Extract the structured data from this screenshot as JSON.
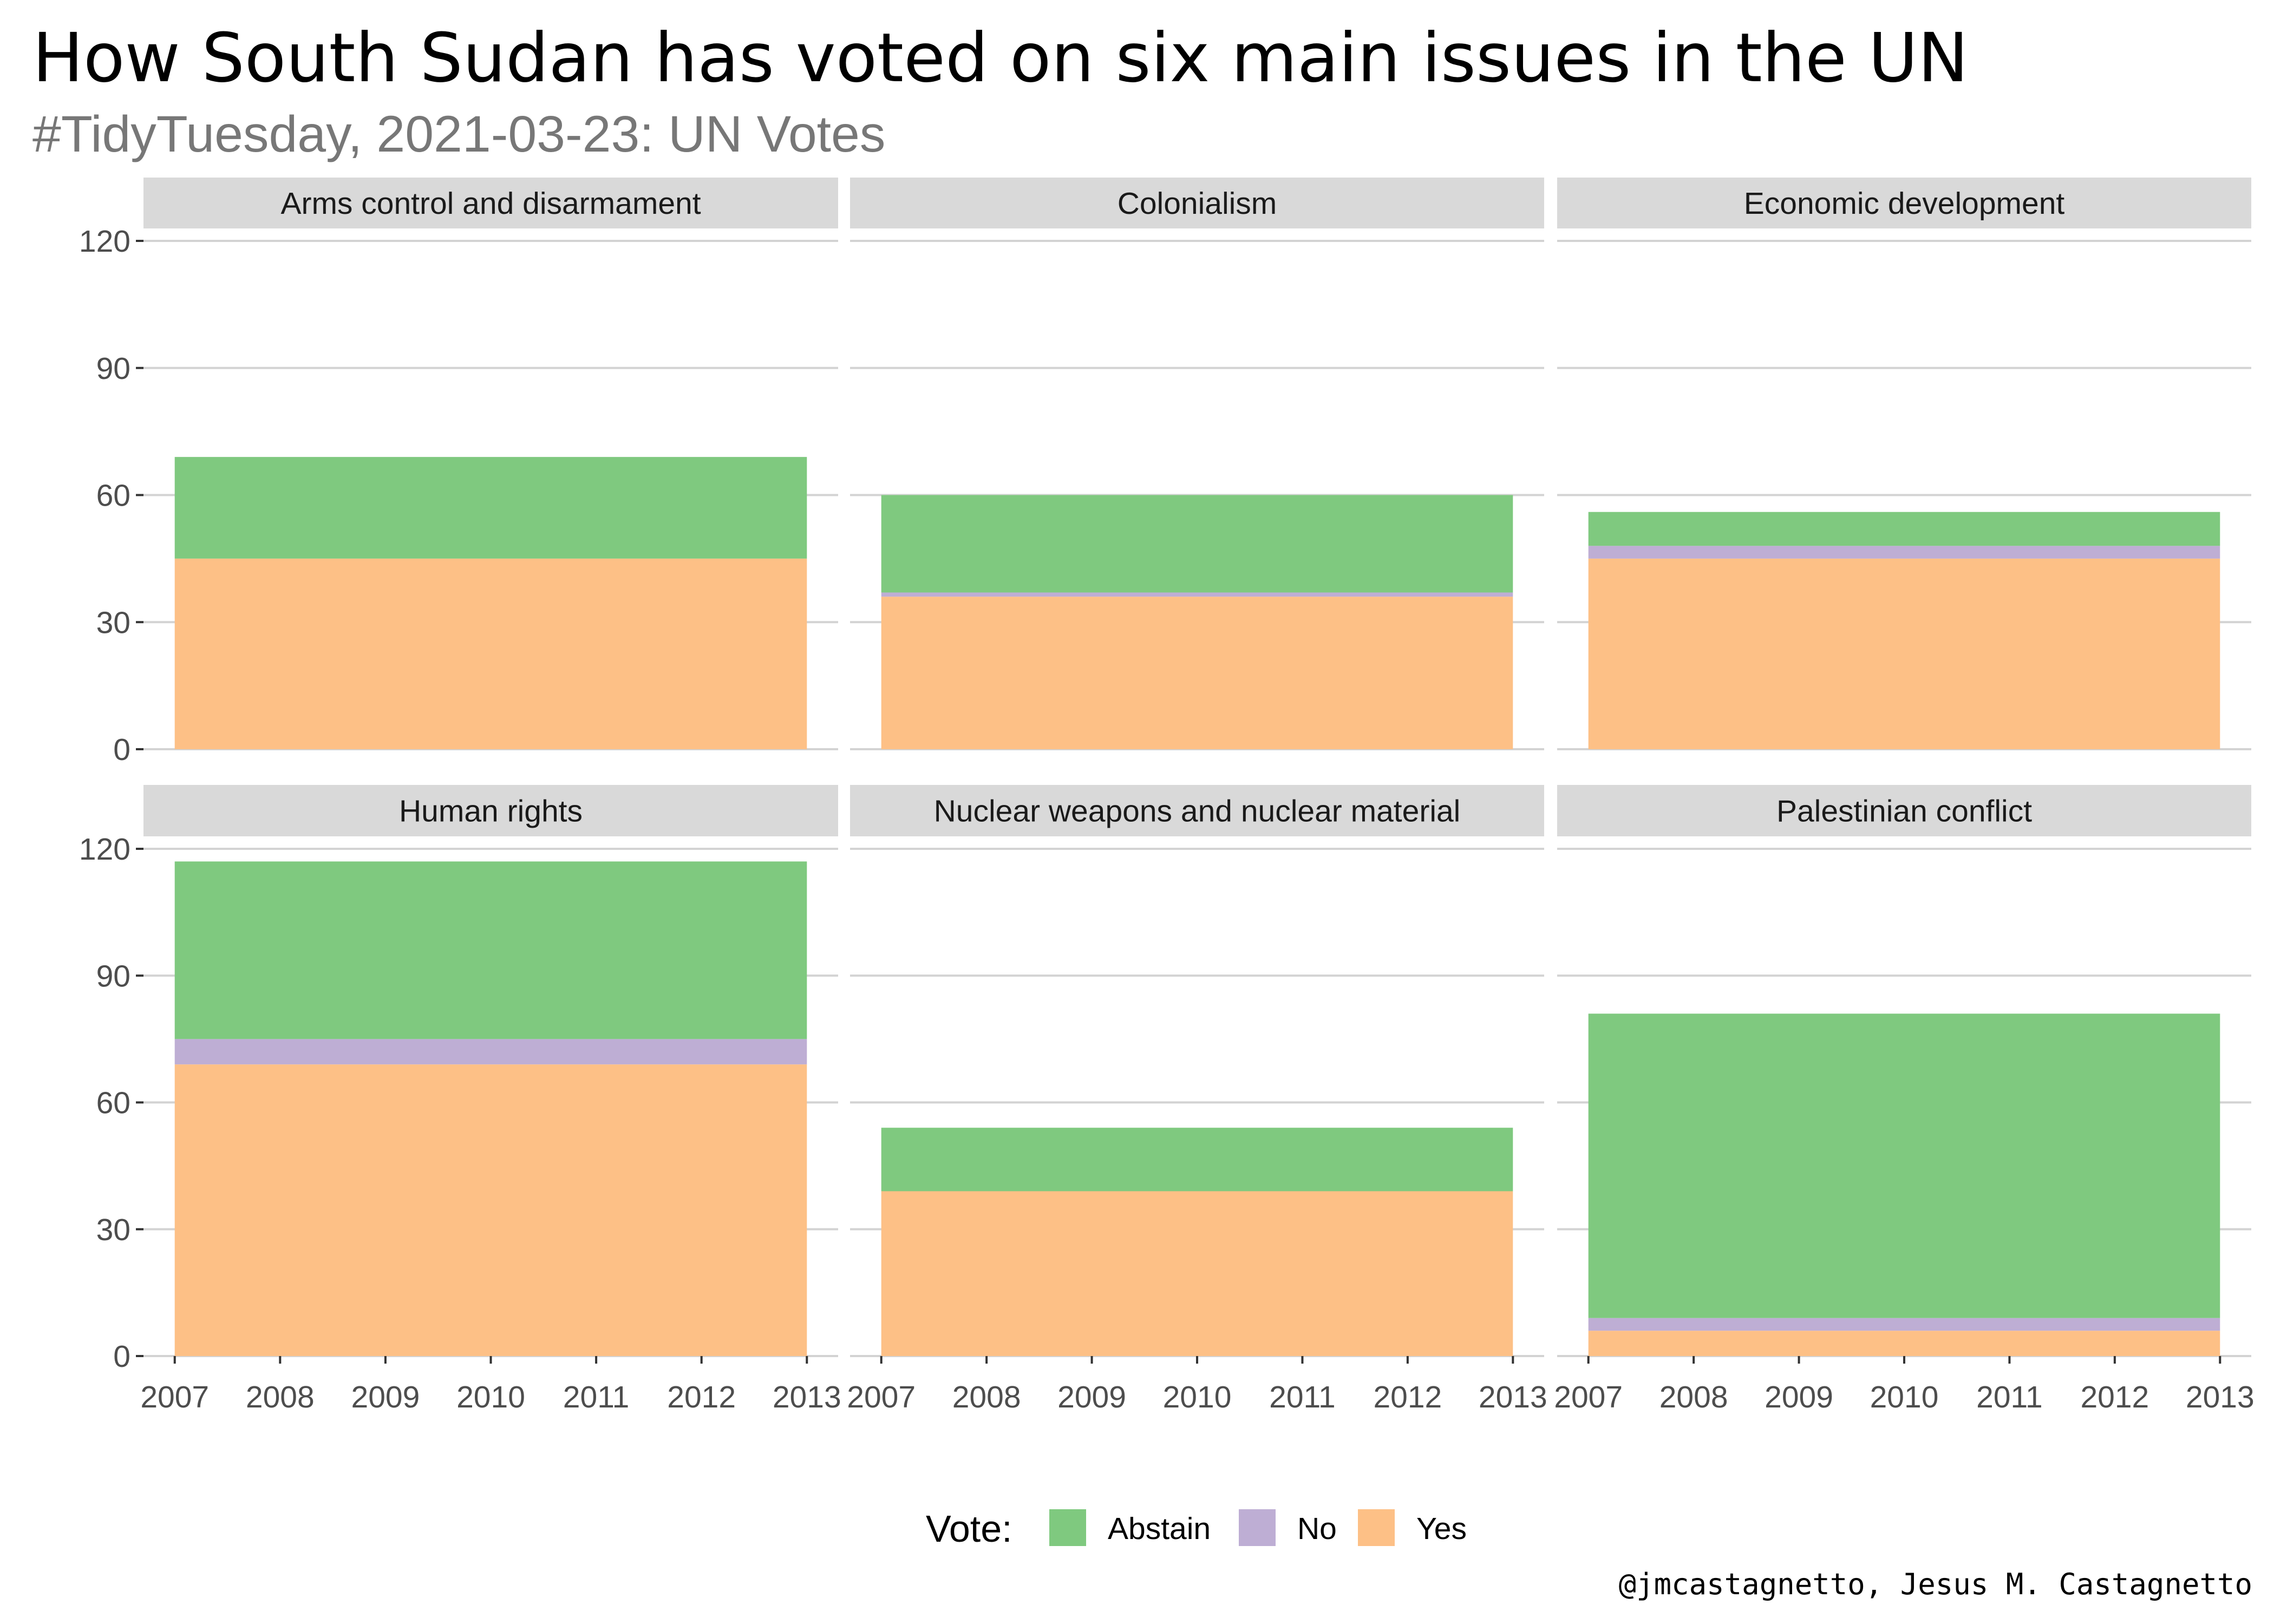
{
  "title": "How South Sudan has voted on six main issues in the UN",
  "subtitle": "#TidyTuesday, 2021-03-23: UN Votes",
  "caption": "@jmcastagnetto, Jesus M. Castagnetto",
  "legend": {
    "title": "Vote:",
    "position": "bottom",
    "items": [
      {
        "label": "Abstain",
        "color": "#7FC97F"
      },
      {
        "label": "No",
        "color": "#BEAED4"
      },
      {
        "label": "Yes",
        "color": "#FDC086"
      }
    ]
  },
  "chart_data": {
    "type": "area",
    "stacked": true,
    "facets": 6,
    "layout": {
      "rows": 2,
      "cols": 3
    },
    "x": [
      2007,
      2008,
      2009,
      2010,
      2011,
      2012,
      2013
    ],
    "xlim": [
      2007,
      2013
    ],
    "ylim": [
      0,
      120
    ],
    "yticks": [
      0,
      30,
      60,
      90,
      120
    ],
    "grid": true,
    "stack_order": [
      "Yes",
      "No",
      "Abstain"
    ],
    "panels": [
      {
        "name": "Arms control and disarmament",
        "series": [
          {
            "name": "Yes",
            "values": [
              45,
              45,
              45,
              45,
              45,
              45,
              45
            ]
          },
          {
            "name": "No",
            "values": [
              0,
              0,
              0,
              0,
              0,
              0,
              0
            ]
          },
          {
            "name": "Abstain",
            "values": [
              24,
              24,
              24,
              24,
              24,
              24,
              24
            ]
          }
        ]
      },
      {
        "name": "Colonialism",
        "series": [
          {
            "name": "Yes",
            "values": [
              36,
              36,
              36,
              36,
              36,
              36,
              36
            ]
          },
          {
            "name": "No",
            "values": [
              1,
              1,
              1,
              1,
              1,
              1,
              1
            ]
          },
          {
            "name": "Abstain",
            "values": [
              23,
              23,
              23,
              23,
              23,
              23,
              23
            ]
          }
        ]
      },
      {
        "name": "Economic development",
        "series": [
          {
            "name": "Yes",
            "values": [
              45,
              45,
              45,
              45,
              45,
              45,
              45
            ]
          },
          {
            "name": "No",
            "values": [
              3,
              3,
              3,
              3,
              3,
              3,
              3
            ]
          },
          {
            "name": "Abstain",
            "values": [
              8,
              8,
              8,
              8,
              8,
              8,
              8
            ]
          }
        ]
      },
      {
        "name": "Human rights",
        "series": [
          {
            "name": "Yes",
            "values": [
              69,
              69,
              69,
              69,
              69,
              69,
              69
            ]
          },
          {
            "name": "No",
            "values": [
              6,
              6,
              6,
              6,
              6,
              6,
              6
            ]
          },
          {
            "name": "Abstain",
            "values": [
              42,
              42,
              42,
              42,
              42,
              42,
              42
            ]
          }
        ]
      },
      {
        "name": "Nuclear weapons and nuclear material",
        "series": [
          {
            "name": "Yes",
            "values": [
              39,
              39,
              39,
              39,
              39,
              39,
              39
            ]
          },
          {
            "name": "No",
            "values": [
              0,
              0,
              0,
              0,
              0,
              0,
              0
            ]
          },
          {
            "name": "Abstain",
            "values": [
              15,
              15,
              15,
              15,
              15,
              15,
              15
            ]
          }
        ]
      },
      {
        "name": "Palestinian conflict",
        "series": [
          {
            "name": "Yes",
            "values": [
              6,
              6,
              6,
              6,
              6,
              6,
              6
            ]
          },
          {
            "name": "No",
            "values": [
              3,
              3,
              3,
              3,
              3,
              3,
              3
            ]
          },
          {
            "name": "Abstain",
            "values": [
              72,
              72,
              72,
              72,
              72,
              72,
              72
            ]
          }
        ]
      }
    ]
  }
}
